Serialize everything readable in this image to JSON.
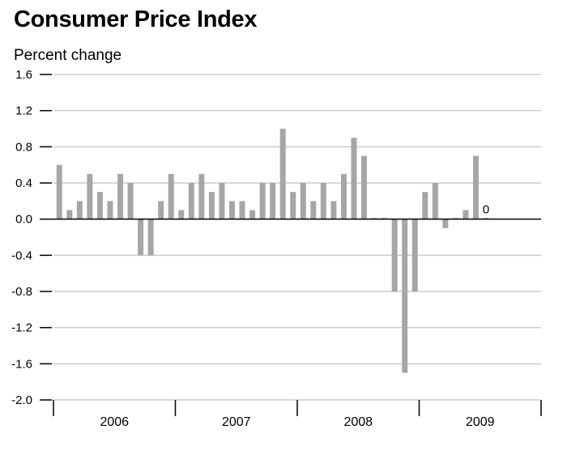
{
  "chart_data": {
    "type": "bar",
    "title": "Consumer Price Index",
    "ylabel": "Percent change",
    "xlabel": "",
    "ylim": [
      -2.0,
      1.6
    ],
    "yticks": [
      "1.6",
      "1.2",
      "0.8",
      "0.4",
      "0.0",
      "-0.4",
      "-0.8",
      "-1.2",
      "-1.6",
      "-2.0"
    ],
    "ytick_values": [
      1.6,
      1.2,
      0.8,
      0.4,
      0.0,
      -0.4,
      -0.8,
      -1.2,
      -1.6,
      -2.0
    ],
    "years": [
      "2006",
      "2007",
      "2008",
      "2009"
    ],
    "months_per_year": 12,
    "grid": true,
    "bar_color": "#a6a6a6",
    "values": [
      0.6,
      0.1,
      0.2,
      0.5,
      0.3,
      0.2,
      0.5,
      0.4,
      -0.4,
      -0.4,
      0.2,
      0.5,
      0.1,
      0.4,
      0.5,
      0.3,
      0.4,
      0.2,
      0.2,
      0.1,
      0.4,
      0.4,
      1.0,
      0.3,
      0.4,
      0.2,
      0.4,
      0.2,
      0.5,
      0.9,
      0.7,
      0.0,
      0.0,
      -0.8,
      -1.7,
      -0.8,
      0.3,
      0.4,
      -0.1,
      0.0,
      0.1,
      0.7,
      0.0
    ],
    "annotation": {
      "label": "0",
      "index": 42
    }
  }
}
